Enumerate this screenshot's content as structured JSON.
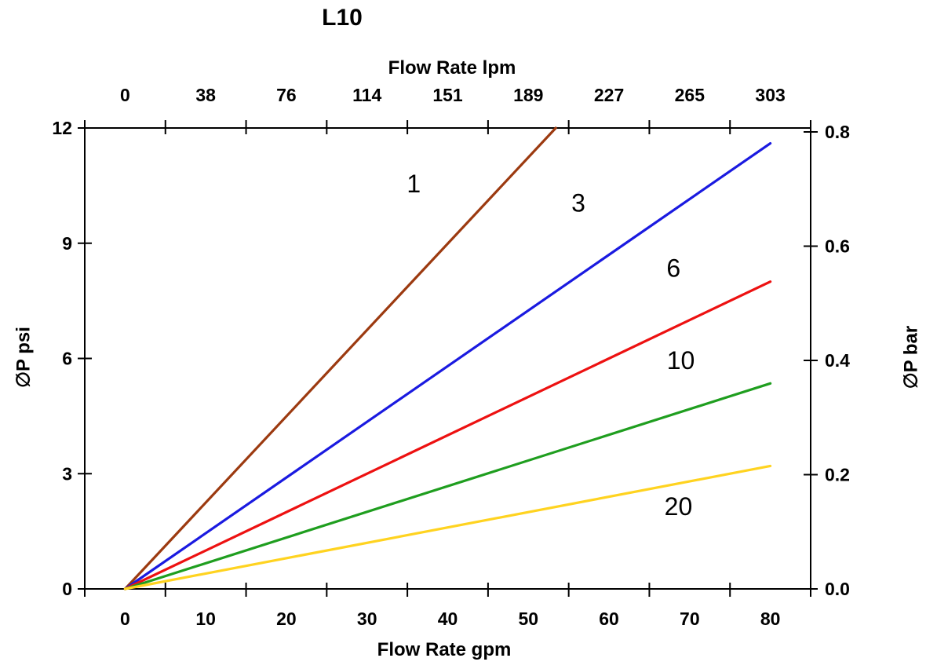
{
  "chart_data": {
    "type": "line",
    "title": "L10",
    "grid": false,
    "legend_position": "none",
    "background_color": "#ffffff",
    "axis_color": "#000000",
    "x_axis_bottom": {
      "label": "Flow Rate gpm",
      "ticks": [
        "0",
        "10",
        "20",
        "30",
        "40",
        "50",
        "60",
        "70",
        "80"
      ],
      "range": [
        0,
        80
      ]
    },
    "x_axis_top": {
      "label": "Flow Rate lpm",
      "ticks": [
        "0",
        "38",
        "76",
        "114",
        "151",
        "189",
        "227",
        "265",
        "303"
      ],
      "range": [
        0,
        303
      ]
    },
    "y_axis_left": {
      "label": "∅P psi",
      "ticks": [
        "0",
        "3",
        "6",
        "9",
        "12"
      ],
      "range": [
        0,
        12
      ]
    },
    "y_axis_right": {
      "label": "∅P bar",
      "ticks": [
        "0.0",
        "0.2",
        "0.4",
        "0.6",
        "0.8"
      ],
      "range": [
        0,
        0.8
      ]
    },
    "series": [
      {
        "name": "1",
        "color": "#9c3a10",
        "x": [
          0,
          53.4
        ],
        "y": [
          0,
          12
        ],
        "clipped_at_top": true,
        "label_at": [
          35.8,
          10.55
        ]
      },
      {
        "name": "3",
        "color": "#1a1ae0",
        "x": [
          0,
          80
        ],
        "y": [
          0,
          11.6
        ],
        "clipped_at_top": false,
        "label_at": [
          56.2,
          10.05
        ]
      },
      {
        "name": "6",
        "color": "#ed1111",
        "x": [
          0,
          80
        ],
        "y": [
          0,
          8.0
        ],
        "clipped_at_top": false,
        "label_at": [
          68.0,
          8.35
        ]
      },
      {
        "name": "10",
        "color": "#1f9e1f",
        "x": [
          0,
          80
        ],
        "y": [
          0,
          5.35
        ],
        "clipped_at_top": false,
        "label_at": [
          68.9,
          5.95
        ]
      },
      {
        "name": "20",
        "color": "#ffd320",
        "x": [
          0,
          80
        ],
        "y": [
          0,
          3.2
        ],
        "clipped_at_top": false,
        "label_at": [
          68.6,
          2.15
        ]
      }
    ]
  }
}
